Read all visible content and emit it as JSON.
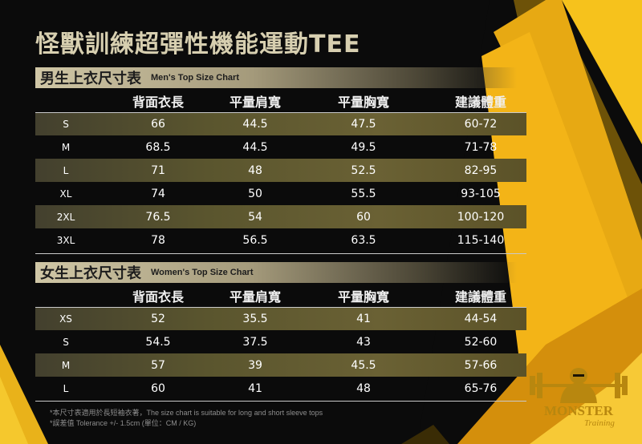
{
  "title": "怪獸訓練超彈性機能運動TEE",
  "colors": {
    "accent_gold": "#f2b51a",
    "header_bg": "#cfc6a4",
    "band": "#5e5730"
  },
  "headers": [
    "背面衣長",
    "平量肩寬",
    "平量胸寬",
    "建議體重"
  ],
  "men": {
    "title_zh": "男生上衣尺寸表",
    "title_en": "Men's Top Size Chart",
    "rows": [
      {
        "size": "S",
        "length": "66",
        "shoulder": "44.5",
        "chest": "47.5",
        "weight": "60-72"
      },
      {
        "size": "M",
        "length": "68.5",
        "shoulder": "44.5",
        "chest": "49.5",
        "weight": "71-78"
      },
      {
        "size": "L",
        "length": "71",
        "shoulder": "48",
        "chest": "52.5",
        "weight": "82-95"
      },
      {
        "size": "XL",
        "length": "74",
        "shoulder": "50",
        "chest": "55.5",
        "weight": "93-105"
      },
      {
        "size": "2XL",
        "length": "76.5",
        "shoulder": "54",
        "chest": "60",
        "weight": "100-120"
      },
      {
        "size": "3XL",
        "length": "78",
        "shoulder": "56.5",
        "chest": "63.5",
        "weight": "115-140"
      }
    ]
  },
  "women": {
    "title_zh": "女生上衣尺寸表",
    "title_en": "Women's Top Size Chart",
    "rows": [
      {
        "size": "XS",
        "length": "52",
        "shoulder": "35.5",
        "chest": "41",
        "weight": "44-54"
      },
      {
        "size": "S",
        "length": "54.5",
        "shoulder": "37.5",
        "chest": "43",
        "weight": "52-60"
      },
      {
        "size": "M",
        "length": "57",
        "shoulder": "39",
        "chest": "45.5",
        "weight": "57-66"
      },
      {
        "size": "L",
        "length": "60",
        "shoulder": "41",
        "chest": "48",
        "weight": "65-76"
      }
    ]
  },
  "footnotes": [
    "*本尺寸表適用於長短袖衣著，The size chart is suitable for long and short sleeve tops",
    "*誤差值 Tolerance +/- 1.5cm (單位：CM / KG)"
  ],
  "logo": {
    "name": "MONSTER",
    "sub": "Training",
    "icon": "gorilla-barbell-icon"
  }
}
